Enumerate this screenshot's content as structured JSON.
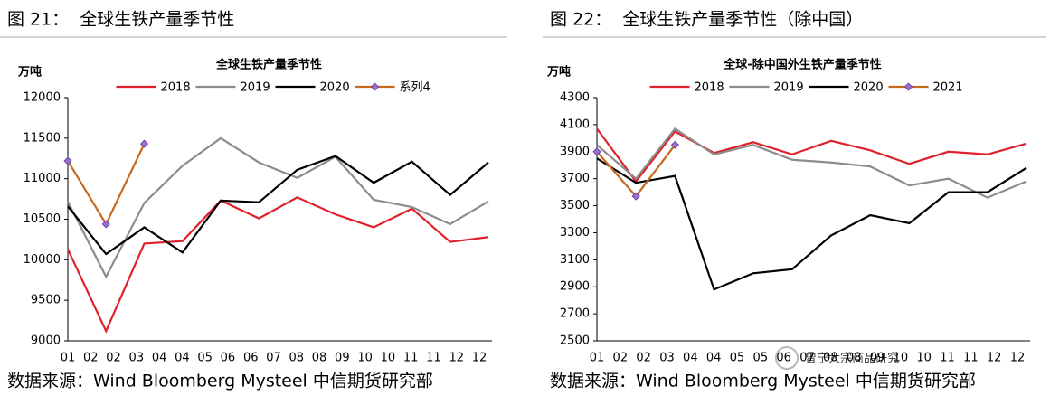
{
  "chart_data": [
    {
      "type": "line",
      "figure_title": "图 21：  全球生铁产量季节性",
      "title": "全球生铁产量季节性",
      "y_unit": "万吨",
      "source": "数据来源：Wind Bloomberg Mysteel 中信期货研究部",
      "x_labels": [
        "01",
        "02",
        "02",
        "03",
        "04",
        "04",
        "05",
        "06",
        "06",
        "07",
        "08",
        "08",
        "09",
        "10",
        "10",
        "11",
        "11",
        "12",
        "12"
      ],
      "ylim": [
        9000,
        12000
      ],
      "yticks": [
        9000,
        9500,
        10000,
        10500,
        11000,
        11500,
        12000
      ],
      "series": [
        {
          "name": "2018",
          "color": "#e0202a",
          "values": [
            10130,
            9120,
            10200,
            10230,
            10730,
            10510,
            10770,
            10560,
            10400,
            10630,
            10220,
            10280
          ]
        },
        {
          "name": "2019",
          "color": "#8c8c8c",
          "values": [
            10720,
            9790,
            10700,
            11160,
            11500,
            11200,
            11010,
            11270,
            10740,
            10650,
            10440,
            10720
          ]
        },
        {
          "name": "2020",
          "color": "#000000",
          "values": [
            10660,
            10070,
            10400,
            10090,
            10730,
            10710,
            11110,
            11280,
            10950,
            11210,
            10800,
            11200
          ]
        },
        {
          "name": "系列4",
          "color": "#c8691e",
          "marker_color": "#9b6fd0",
          "values": [
            11220,
            10440,
            11430,
            null,
            null,
            null,
            null,
            null,
            null,
            null,
            null,
            null
          ]
        }
      ]
    },
    {
      "type": "line",
      "figure_title": "图 22：  全球生铁产量季节性（除中国）",
      "title": "全球-除中国外生铁产量季节性",
      "y_unit": "万吨",
      "source": "数据来源：Wind Bloomberg Mysteel 中信期货研究部",
      "watermark": "曾宁大宗商品研究",
      "x_labels": [
        "01",
        "02",
        "02",
        "03",
        "04",
        "04",
        "05",
        "05",
        "06",
        "07",
        "08",
        "08",
        "09",
        "10",
        "10",
        "11",
        "11",
        "12",
        "12"
      ],
      "ylim": [
        2500,
        4300
      ],
      "yticks": [
        2500,
        2700,
        2900,
        3100,
        3300,
        3500,
        3700,
        3900,
        4100,
        4300
      ],
      "series": [
        {
          "name": "2018",
          "color": "#e0202a",
          "values": [
            4070,
            3680,
            4050,
            3890,
            3970,
            3880,
            3980,
            3910,
            3810,
            3900,
            3880,
            3960
          ]
        },
        {
          "name": "2019",
          "color": "#8c8c8c",
          "values": [
            3950,
            3700,
            4070,
            3880,
            3950,
            3840,
            3820,
            3790,
            3650,
            3700,
            3560,
            3680
          ]
        },
        {
          "name": "2020",
          "color": "#000000",
          "values": [
            3850,
            3670,
            3720,
            2880,
            3000,
            3030,
            3280,
            3430,
            3370,
            3600,
            3600,
            3780
          ]
        },
        {
          "name": "2021",
          "color": "#c8691e",
          "marker_color": "#9b6fd0",
          "values": [
            3900,
            3570,
            3950,
            null,
            null,
            null,
            null,
            null,
            null,
            null,
            null,
            null
          ]
        }
      ]
    }
  ]
}
